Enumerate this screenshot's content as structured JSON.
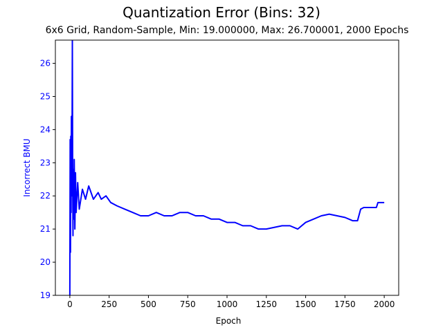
{
  "chart_data": {
    "type": "line",
    "title": "Quantization Error (Bins: 32)",
    "subtitle": "6x6 Grid, Random-Sample, Min: 19.000000, Max: 26.700001, 2000 Epochs",
    "xlabel": "Epoch",
    "ylabel": "Incorrect BMU",
    "xlim": [
      -92,
      2092
    ],
    "ylim": [
      19,
      26.7
    ],
    "xticks": [
      0,
      250,
      500,
      750,
      1000,
      1250,
      1500,
      1750,
      2000
    ],
    "yticks": [
      19,
      20,
      21,
      22,
      23,
      24,
      25,
      26
    ],
    "grid": false,
    "colors": {
      "line": "#0000ff",
      "ylabel": "#0000ff",
      "ytick_labels": "#0000ff"
    },
    "series": [
      {
        "x": [
          0,
          2,
          4,
          6,
          8,
          10,
          12,
          14,
          16,
          18,
          20,
          22,
          25,
          28,
          32,
          36,
          40,
          50,
          60,
          80,
          100,
          120,
          150,
          180,
          200,
          230,
          260,
          300,
          350,
          400,
          450,
          500,
          550,
          600,
          650,
          700,
          750,
          800,
          850,
          900,
          950,
          1000,
          1050,
          1100,
          1150,
          1200,
          1250,
          1300,
          1350,
          1400,
          1450,
          1500,
          1550,
          1600,
          1650,
          1700,
          1750,
          1800,
          1830,
          1850,
          1870,
          1900,
          1950,
          1960,
          2000
        ],
        "y": [
          19.0,
          23.7,
          20.3,
          23.8,
          21.5,
          24.4,
          22.0,
          23.5,
          26.7,
          22.6,
          20.8,
          22.8,
          21.3,
          23.1,
          21.0,
          22.7,
          21.5,
          22.4,
          21.6,
          22.2,
          21.9,
          22.3,
          21.9,
          22.1,
          21.9,
          22.0,
          21.8,
          21.7,
          21.6,
          21.5,
          21.4,
          21.4,
          21.5,
          21.4,
          21.4,
          21.5,
          21.5,
          21.4,
          21.4,
          21.3,
          21.3,
          21.2,
          21.2,
          21.1,
          21.1,
          21.0,
          21.0,
          21.05,
          21.1,
          21.1,
          21.0,
          21.2,
          21.3,
          21.4,
          21.45,
          21.4,
          21.35,
          21.25,
          21.25,
          21.6,
          21.65,
          21.65,
          21.65,
          21.8,
          21.8
        ]
      }
    ]
  }
}
